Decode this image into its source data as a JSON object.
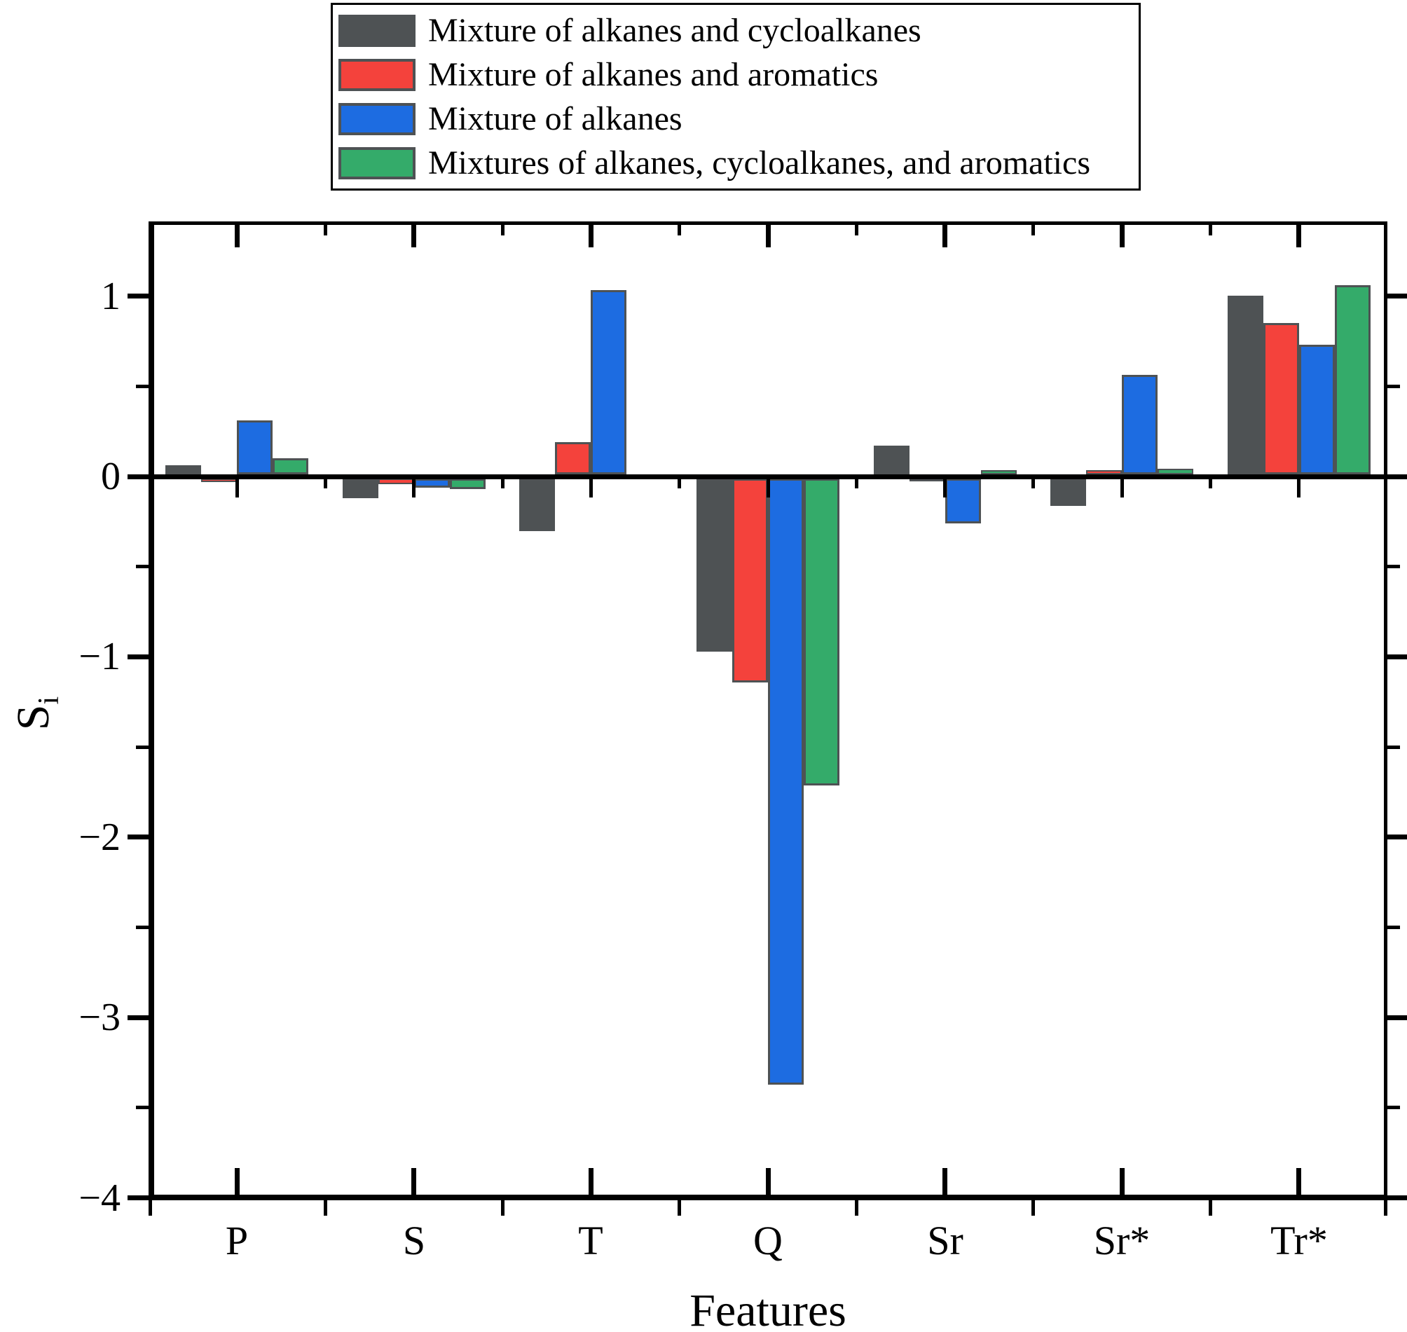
{
  "chart_data": {
    "type": "bar",
    "title": "",
    "xlabel": "Features",
    "ylabel": "Si",
    "categories": [
      "P",
      "S",
      "T",
      "Q",
      "Sr",
      "Sr*",
      "Tr*"
    ],
    "series": [
      {
        "name": "Mixture of alkanes and cycloalkanes",
        "color": "#4e5254",
        "values": [
          0.05,
          -0.11,
          -0.29,
          -0.96,
          0.16,
          -0.15,
          0.99
        ]
      },
      {
        "name": "Mixture of alkanes and aromatics",
        "color": "#f4423c",
        "values": [
          -0.02,
          -0.03,
          0.18,
          -1.13,
          -0.015,
          0.025,
          0.84
        ]
      },
      {
        "name": "Mixture of alkanes",
        "color": "#1d6ce1",
        "values": [
          0.3,
          -0.05,
          1.02,
          -3.36,
          -0.25,
          0.55,
          0.72
        ]
      },
      {
        "name": "Mixtures of alkanes, cycloalkanes, and aromatics",
        "color": "#34ab6a",
        "values": [
          0.09,
          -0.06,
          0.0,
          -1.7,
          0.025,
          0.03,
          1.05
        ]
      }
    ],
    "ylim": [
      -4.01,
      1.41
    ],
    "grid": false,
    "legend_position": "top"
  },
  "axes": {
    "x_title": "Features",
    "y_title_base": "S",
    "y_title_sub": "i",
    "y_tick_values": [
      1,
      0,
      -1,
      -2,
      -3,
      -4
    ],
    "y_tick_labels": [
      "1",
      "0",
      "−1",
      "−2",
      "−3",
      "−4"
    ],
    "y_minor_values": [
      0.5,
      -0.5,
      -1.5,
      -2.5,
      -3.5
    ]
  },
  "style": {
    "bar_border_color": "#4e5254",
    "axis_color": "#000000",
    "background": "#ffffff"
  }
}
